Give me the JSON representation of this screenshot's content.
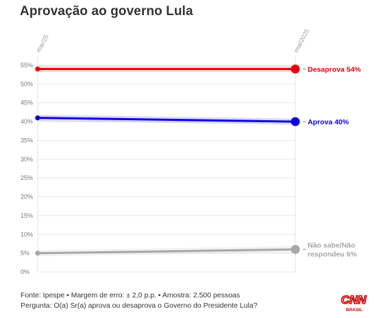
{
  "title": "Aprovação ao governo Lula",
  "chart_data": {
    "type": "line",
    "x": [
      "mar/25",
      "mai/2025"
    ],
    "ylim": [
      0,
      55
    ],
    "yticks": [
      0,
      5,
      10,
      15,
      20,
      25,
      30,
      35,
      40,
      45,
      50,
      55
    ],
    "ytick_labels": [
      "0%",
      "5%",
      "10%",
      "15%",
      "20%",
      "25%",
      "30%",
      "35%",
      "40%",
      "45%",
      "50%",
      "55%"
    ],
    "grid": true,
    "series": [
      {
        "label": "Desaprova 54%",
        "color": "#e8000b",
        "values": [
          54,
          54
        ]
      },
      {
        "label": "Aprova 40%",
        "color": "#0b00e0",
        "values": [
          41,
          40
        ]
      },
      {
        "label": "Não sabe/Não respondeu 6%",
        "label_lines": [
          "Não sabe/Não",
          "respondeu 6%"
        ],
        "color": "#a7a7a7",
        "values": [
          5,
          6
        ]
      }
    ]
  },
  "footer": {
    "source": "Fonte: Ipespe • Margem de erro: ± 2,0 p.p. • Amostra: 2.500 pessoas",
    "question": "Pergunta: O(a) Sr(a) aprova ou desaprova o Governo do Presidente Lula?"
  },
  "logo": {
    "main": "CNN",
    "sub": "BRASIL",
    "color": "#cc0000"
  }
}
